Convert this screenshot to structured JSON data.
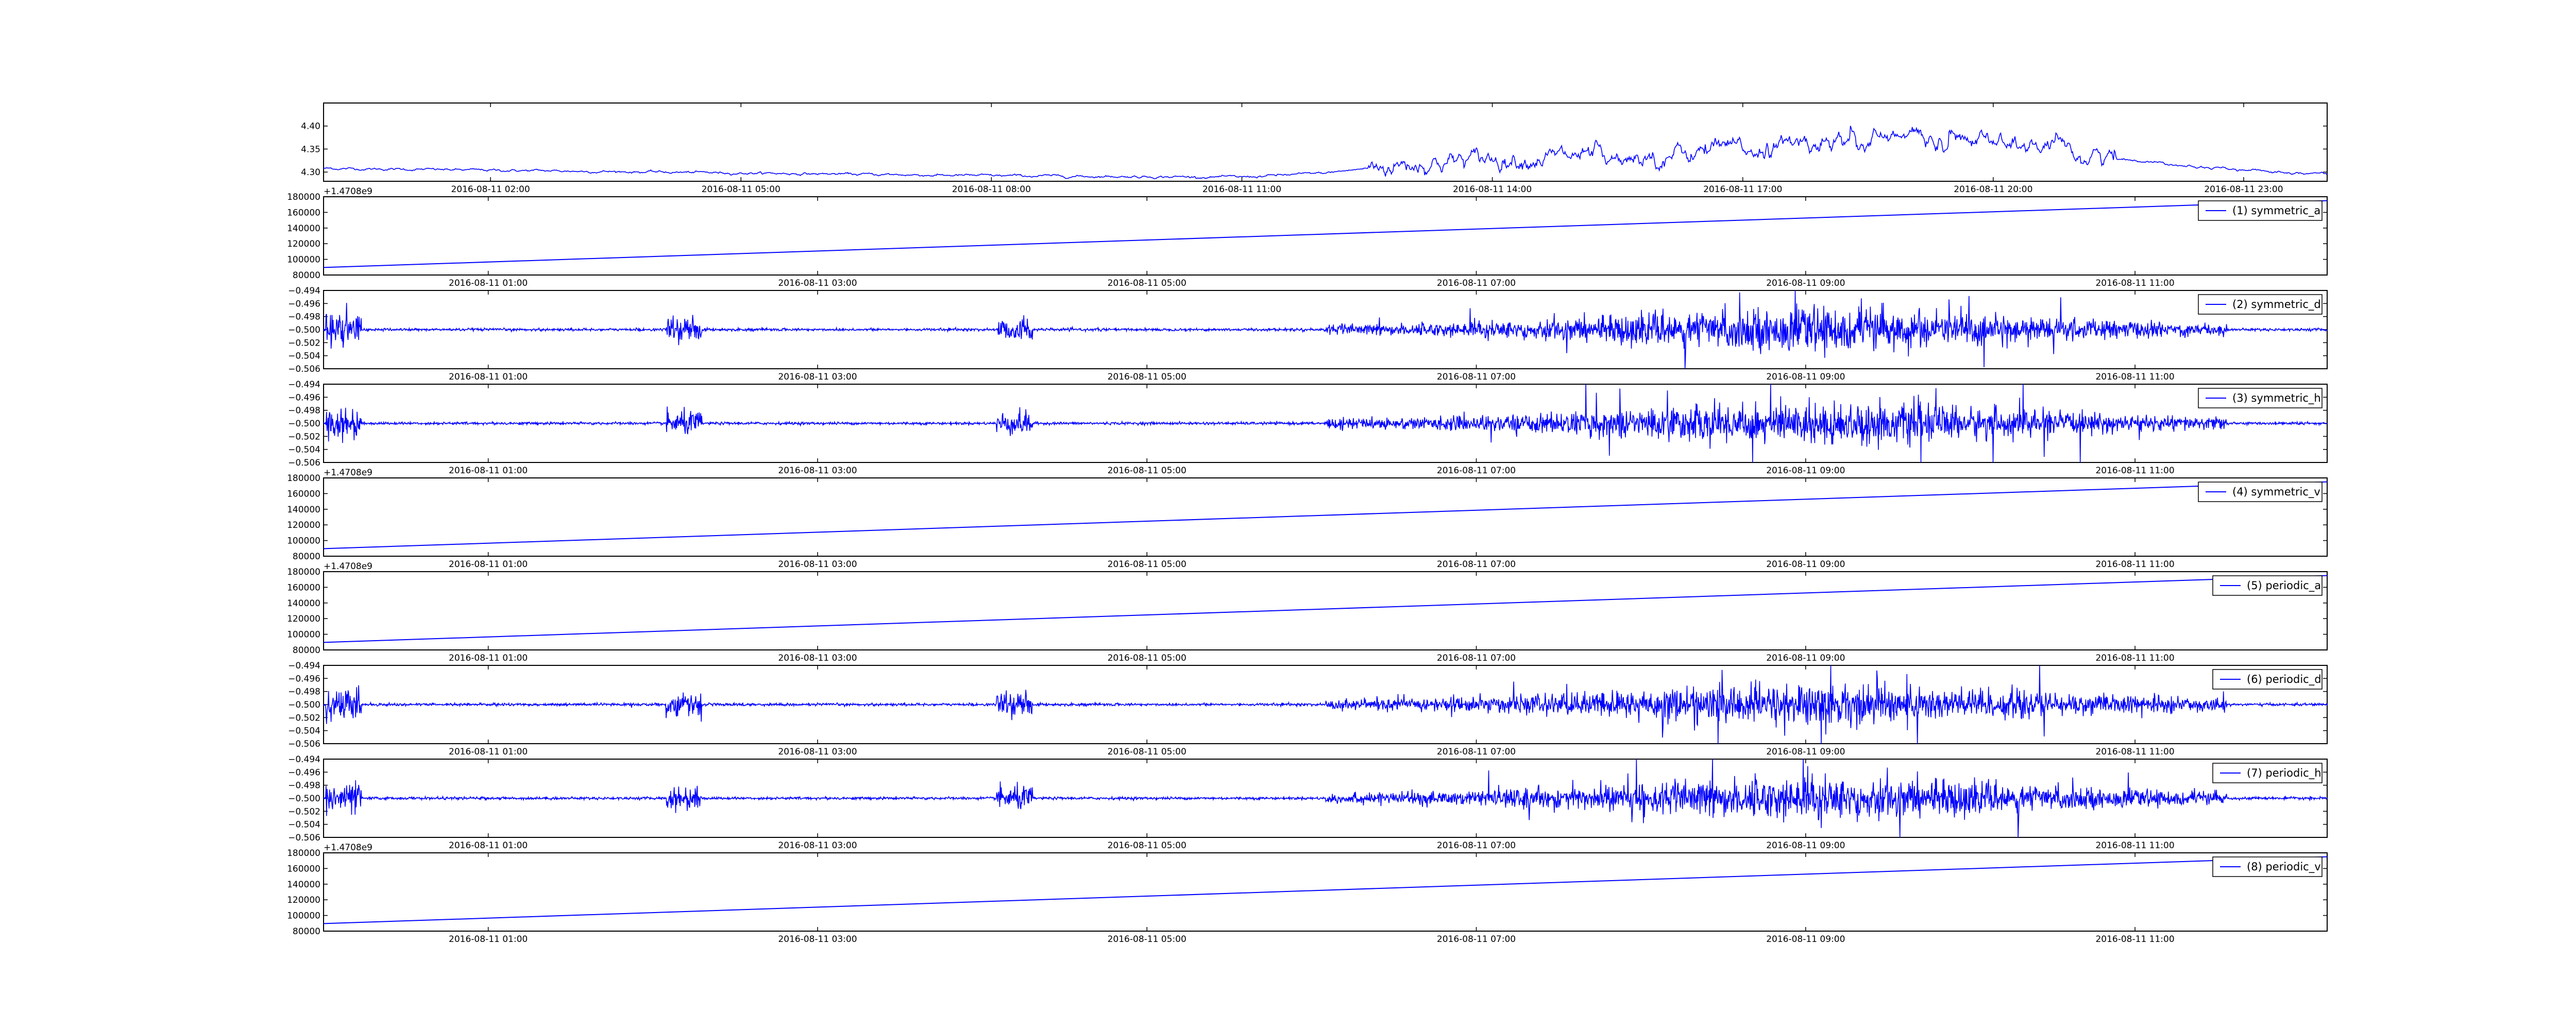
{
  "chart_data": [
    {
      "type": "line",
      "kind": "price",
      "series": [
        {
          "color": "#0000ff",
          "x": [
            "2016-08-11 00:00",
            "2016-08-11 01:00",
            "2016-08-11 02:00",
            "2016-08-11 03:00",
            "2016-08-11 04:00",
            "2016-08-11 05:00",
            "2016-08-11 06:00",
            "2016-08-11 07:00",
            "2016-08-11 08:00",
            "2016-08-11 09:00",
            "2016-08-11 10:00",
            "2016-08-11 11:00",
            "2016-08-11 12:00",
            "2016-08-11 13:00",
            "2016-08-11 14:00",
            "2016-08-11 15:00",
            "2016-08-11 16:00",
            "2016-08-11 17:00",
            "2016-08-11 18:00",
            "2016-08-11 19:00",
            "2016-08-11 20:00",
            "2016-08-11 21:00",
            "2016-08-11 22:00",
            "2016-08-11 23:00",
            "2016-08-12 00:00"
          ],
          "values": [
            4.308,
            4.306,
            4.304,
            4.302,
            4.3,
            4.298,
            4.296,
            4.294,
            4.292,
            4.291,
            4.29,
            4.289,
            4.298,
            4.318,
            4.33,
            4.333,
            4.337,
            4.35,
            4.365,
            4.375,
            4.365,
            4.34,
            4.32,
            4.304,
            4.296
          ]
        }
      ],
      "x_ticks": [
        "2016-08-11 02:00",
        "2016-08-11 05:00",
        "2016-08-11 08:00",
        "2016-08-11 11:00",
        "2016-08-11 14:00",
        "2016-08-11 17:00",
        "2016-08-11 20:00",
        "2016-08-11 23:00"
      ],
      "y_ticks": [
        "4.30",
        "4.35",
        "4.40"
      ],
      "ylim": [
        4.28,
        4.45
      ],
      "legend": null
    },
    {
      "type": "line",
      "kind": "linear",
      "series": [
        {
          "color": "#0000ff",
          "x": [
            "2016-08-11 00:00",
            "2016-08-11 12:10"
          ],
          "values": [
            89600,
            175000
          ]
        }
      ],
      "x_ticks": [
        "2016-08-11 01:00",
        "2016-08-11 03:00",
        "2016-08-11 05:00",
        "2016-08-11 07:00",
        "2016-08-11 09:00",
        "2016-08-11 11:00"
      ],
      "y_ticks": [
        "80000",
        "100000",
        "120000",
        "140000",
        "160000",
        "180000"
      ],
      "ylim": [
        80000,
        180000
      ],
      "y_offset": "+1.4708e9",
      "legend": "(1) symmetric_a",
      "legend_position": "top-right"
    },
    {
      "type": "line",
      "kind": "noise",
      "series": [
        {
          "color": "#0000ff",
          "x": [
            "2016-08-11 00:00",
            "2016-08-11 12:10"
          ],
          "values": [
            -0.5,
            -0.5
          ]
        }
      ],
      "x_ticks": [
        "2016-08-11 01:00",
        "2016-08-11 03:00",
        "2016-08-11 05:00",
        "2016-08-11 07:00",
        "2016-08-11 09:00",
        "2016-08-11 11:00"
      ],
      "y_ticks": [
        "−0.494",
        "−0.496",
        "−0.498",
        "−0.500",
        "−0.502",
        "−0.504",
        "−0.506"
      ],
      "ylim": [
        -0.506,
        -0.494
      ],
      "legend": "(2) symmetric_d",
      "legend_position": "top-right"
    },
    {
      "type": "line",
      "kind": "noise",
      "series": [
        {
          "color": "#0000ff",
          "x": [
            "2016-08-11 00:00",
            "2016-08-11 12:10"
          ],
          "values": [
            -0.5,
            -0.5
          ]
        }
      ],
      "x_ticks": [
        "2016-08-11 01:00",
        "2016-08-11 03:00",
        "2016-08-11 05:00",
        "2016-08-11 07:00",
        "2016-08-11 09:00",
        "2016-08-11 11:00"
      ],
      "y_ticks": [
        "−0.494",
        "−0.496",
        "−0.498",
        "−0.500",
        "−0.502",
        "−0.504",
        "−0.506"
      ],
      "ylim": [
        -0.506,
        -0.494
      ],
      "legend": "(3) symmetric_h",
      "legend_position": "top-right"
    },
    {
      "type": "line",
      "kind": "linear",
      "series": [
        {
          "color": "#0000ff",
          "x": [
            "2016-08-11 00:00",
            "2016-08-11 12:10"
          ],
          "values": [
            89600,
            175000
          ]
        }
      ],
      "x_ticks": [
        "2016-08-11 01:00",
        "2016-08-11 03:00",
        "2016-08-11 05:00",
        "2016-08-11 07:00",
        "2016-08-11 09:00",
        "2016-08-11 11:00"
      ],
      "y_ticks": [
        "80000",
        "100000",
        "120000",
        "140000",
        "160000",
        "180000"
      ],
      "ylim": [
        80000,
        180000
      ],
      "y_offset": "+1.4708e9",
      "legend": "(4) symmetric_v",
      "legend_position": "top-right"
    },
    {
      "type": "line",
      "kind": "linear",
      "series": [
        {
          "color": "#0000ff",
          "x": [
            "2016-08-11 00:00",
            "2016-08-11 12:10"
          ],
          "values": [
            89600,
            175000
          ]
        }
      ],
      "x_ticks": [
        "2016-08-11 01:00",
        "2016-08-11 03:00",
        "2016-08-11 05:00",
        "2016-08-11 07:00",
        "2016-08-11 09:00",
        "2016-08-11 11:00"
      ],
      "y_ticks": [
        "80000",
        "100000",
        "120000",
        "140000",
        "160000",
        "180000"
      ],
      "ylim": [
        80000,
        180000
      ],
      "y_offset": "+1.4708e9",
      "legend": "(5) periodic_a",
      "legend_position": "top-right"
    },
    {
      "type": "line",
      "kind": "noise",
      "series": [
        {
          "color": "#0000ff",
          "x": [
            "2016-08-11 00:00",
            "2016-08-11 12:10"
          ],
          "values": [
            -0.5,
            -0.5
          ]
        }
      ],
      "x_ticks": [
        "2016-08-11 01:00",
        "2016-08-11 03:00",
        "2016-08-11 05:00",
        "2016-08-11 07:00",
        "2016-08-11 09:00",
        "2016-08-11 11:00"
      ],
      "y_ticks": [
        "−0.494",
        "−0.496",
        "−0.498",
        "−0.500",
        "−0.502",
        "−0.504",
        "−0.506"
      ],
      "ylim": [
        -0.506,
        -0.494
      ],
      "legend": "(6) periodic_d",
      "legend_position": "top-right"
    },
    {
      "type": "line",
      "kind": "noise",
      "series": [
        {
          "color": "#0000ff",
          "x": [
            "2016-08-11 00:00",
            "2016-08-11 12:10"
          ],
          "values": [
            -0.5,
            -0.5
          ]
        }
      ],
      "x_ticks": [
        "2016-08-11 01:00",
        "2016-08-11 03:00",
        "2016-08-11 05:00",
        "2016-08-11 07:00",
        "2016-08-11 09:00",
        "2016-08-11 11:00"
      ],
      "y_ticks": [
        "−0.494",
        "−0.496",
        "−0.498",
        "−0.500",
        "−0.502",
        "−0.504",
        "−0.506"
      ],
      "ylim": [
        -0.506,
        -0.494
      ],
      "legend": "(7) periodic_h",
      "legend_position": "top-right"
    },
    {
      "type": "line",
      "kind": "linear",
      "series": [
        {
          "color": "#0000ff",
          "x": [
            "2016-08-11 00:00",
            "2016-08-11 12:10"
          ],
          "values": [
            89600,
            175000
          ]
        }
      ],
      "x_ticks": [
        "2016-08-11 01:00",
        "2016-08-11 03:00",
        "2016-08-11 05:00",
        "2016-08-11 07:00",
        "2016-08-11 09:00",
        "2016-08-11 11:00"
      ],
      "y_ticks": [
        "80000",
        "100000",
        "120000",
        "140000",
        "160000",
        "180000"
      ],
      "ylim": [
        80000,
        180000
      ],
      "y_offset": "+1.4708e9",
      "legend": "(8) periodic_v",
      "legend_position": "top-right"
    }
  ]
}
